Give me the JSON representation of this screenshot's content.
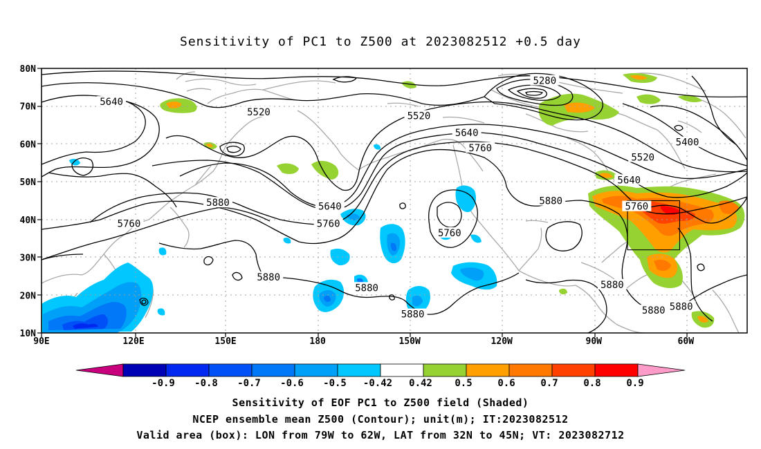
{
  "title": "Sensitivity of PC1 to Z500 at 2023082512 +0.5 day",
  "lat_labels": [
    "80N",
    "70N",
    "60N",
    "50N",
    "40N",
    "30N",
    "20N",
    "10N"
  ],
  "lon_labels": [
    "90E",
    "120E",
    "150E",
    "180",
    "150W",
    "120W",
    "90W",
    "60W"
  ],
  "contour_labels": [
    {
      "text": "5280",
      "lon": -106.0,
      "lat": 76.8
    },
    {
      "text": "5520",
      "lon": 160.8,
      "lat": 68.5
    },
    {
      "text": "5520",
      "lon": -147.0,
      "lat": 67.5
    },
    {
      "text": "5640",
      "lon": 112.8,
      "lat": 71.2
    },
    {
      "text": "5640",
      "lon": -131.4,
      "lat": 63.0
    },
    {
      "text": "5760",
      "lon": -127.0,
      "lat": 59.0
    },
    {
      "text": "5400",
      "lon": -59.5,
      "lat": 60.5
    },
    {
      "text": "5520",
      "lon": -74.0,
      "lat": 56.5
    },
    {
      "text": "5640",
      "lon": -78.5,
      "lat": 50.5
    },
    {
      "text": "5760",
      "lon": -76.0,
      "lat": 43.5
    },
    {
      "text": "5880",
      "lon": -104.0,
      "lat": 45.0
    },
    {
      "text": "5880",
      "lon": 147.5,
      "lat": 44.5
    },
    {
      "text": "5760",
      "lon": 118.5,
      "lat": 39.0
    },
    {
      "text": "5640",
      "lon": 184.0,
      "lat": 43.5
    },
    {
      "text": "5760",
      "lon": 183.5,
      "lat": 39.0
    },
    {
      "text": "5760",
      "lon": -137.0,
      "lat": 36.5
    },
    {
      "text": "5880",
      "lon": 164.0,
      "lat": 24.8
    },
    {
      "text": "5880",
      "lon": 196.0,
      "lat": 22.0
    },
    {
      "text": "5880",
      "lon": -149.0,
      "lat": 15.0
    },
    {
      "text": "5880",
      "lon": -84.0,
      "lat": 22.8
    },
    {
      "text": "5880",
      "lon": -70.5,
      "lat": 16.0
    },
    {
      "text": "5880",
      "lon": -61.5,
      "lat": 17.0
    }
  ],
  "valid_box": {
    "lon_min": -79,
    "lon_max": -62,
    "lat_min": 32,
    "lat_max": 45
  },
  "colorbar": {
    "labels": [
      "-0.9",
      "-0.8",
      "-0.7",
      "-0.6",
      "-0.5",
      "-0.42",
      "0.42",
      "0.5",
      "0.6",
      "0.7",
      "0.8",
      "0.9"
    ],
    "colors": [
      "#0000b4",
      "#0028f0",
      "#0050f8",
      "#0078f8",
      "#00a0f8",
      "#00c8ff",
      "#ffffff",
      "#96d232",
      "#ffa000",
      "#ff7800",
      "#ff4000",
      "#ff0000"
    ],
    "low_end_color": "#c8007d",
    "high_end_color": "#ff9bc8"
  },
  "captions": [
    "Sensitivity of EOF PC1 to Z500 field (Shaded)",
    "NCEP ensemble mean Z500 (Contour); unit(m); IT:2023082512",
    "Valid area (box): LON from 79W to 62W, LAT from 32N to 45N; VT: 2023082712"
  ]
}
